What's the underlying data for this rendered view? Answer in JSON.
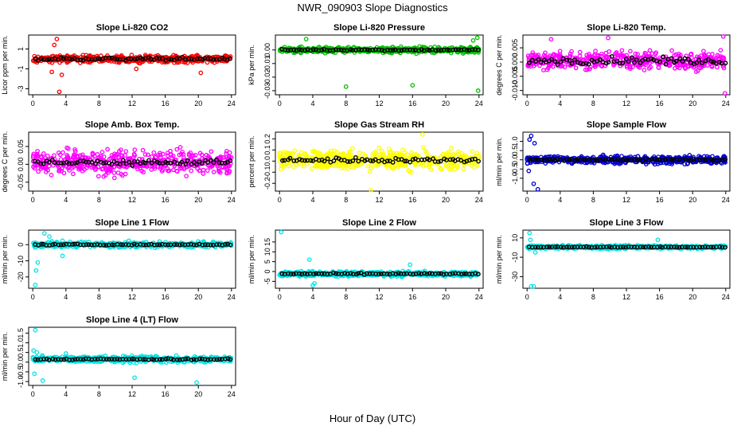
{
  "figure": {
    "title": "NWR_090903  Slope Diagnostics",
    "xlabel": "Hour of Day (UTC)"
  },
  "chart_data": [
    {
      "type": "scatter",
      "title": "Slope Li-820 CO2",
      "ylabel": "Licor ppm per min.",
      "xlim": [
        -0.5,
        24.5
      ],
      "ylim": [
        -3.6,
        2.4
      ],
      "xticks": [
        0,
        4,
        8,
        12,
        16,
        20,
        24
      ],
      "yticks": [
        -3,
        -1,
        1
      ],
      "ytick_labels": [
        "-3",
        "-1",
        "1"
      ],
      "color": "#ff0000",
      "spread": 0.5,
      "offset": 0,
      "noise_amp": 0.2,
      "jitter": 0.02,
      "outliers": [
        {
          "x": 2.3,
          "y": -1.3
        },
        {
          "x": 2.9,
          "y": 2.0
        },
        {
          "x": 3.2,
          "y": -3.3
        },
        {
          "x": 2.6,
          "y": 1.4
        },
        {
          "x": 12.5,
          "y": -1.0
        },
        {
          "x": 20.3,
          "y": -1.4
        },
        {
          "x": 3.5,
          "y": -1.6
        }
      ]
    },
    {
      "type": "scatter",
      "title": "Slope Li-820 Pressure",
      "ylabel": "kPa per min.",
      "xlim": [
        -0.5,
        24.5
      ],
      "ylim": [
        -0.033,
        0.011
      ],
      "xticks": [
        0,
        4,
        8,
        12,
        16,
        20,
        24
      ],
      "yticks": [
        0.0,
        -0.01,
        -0.02,
        -0.03
      ],
      "ytick_labels": [
        "0.00",
        "-0.01",
        "-0.02",
        "-0.03"
      ],
      "color": "#00c000",
      "spread": 0.003,
      "offset": 0,
      "noise_amp": 0.0008,
      "jitter": 0.0002,
      "outliers": [
        {
          "x": 3.2,
          "y": 0.008
        },
        {
          "x": 8.0,
          "y": -0.027
        },
        {
          "x": 16.0,
          "y": -0.026
        },
        {
          "x": 23.9,
          "y": -0.03
        },
        {
          "x": 23.8,
          "y": 0.009
        },
        {
          "x": 23.3,
          "y": 0.007
        }
      ]
    },
    {
      "type": "scatter",
      "title": "Slope Li-820 Temp.",
      "ylabel": "degrees C per min.",
      "xlim": [
        -0.5,
        24.5
      ],
      "ylim": [
        -0.0115,
        0.0095
      ],
      "xticks": [
        0,
        4,
        8,
        12,
        16,
        20,
        24
      ],
      "yticks": [
        0.005,
        0.0,
        -0.005,
        -0.01
      ],
      "ytick_labels": [
        "0.005",
        "0.000",
        "-0.005",
        "-0.010"
      ],
      "color": "#ff00ff",
      "spread": 0.0045,
      "offset": 0.0005,
      "noise_amp": 0.0018,
      "jitter": 0.0004,
      "outliers": [
        {
          "x": 23.7,
          "y": 0.009
        },
        {
          "x": 23.9,
          "y": -0.011
        },
        {
          "x": 2.9,
          "y": 0.008
        },
        {
          "x": 9.8,
          "y": 0.0085
        }
      ]
    },
    {
      "type": "scatter",
      "title": "Slope Amb. Box Temp.",
      "ylabel": "degrees C per min.",
      "xlim": [
        -0.5,
        24.5
      ],
      "ylim": [
        -0.075,
        0.09
      ],
      "xticks": [
        0,
        4,
        8,
        12,
        16,
        20,
        24
      ],
      "yticks": [
        0.05,
        0.0,
        -0.05
      ],
      "ytick_labels": [
        "0.05",
        "0.00",
        "-0.05"
      ],
      "color": "#ff00ff",
      "spread": 0.048,
      "offset": 0.005,
      "noise_amp": 0.012,
      "jitter": 0.003,
      "outliers": []
    },
    {
      "type": "scatter",
      "title": "Slope Gas Stream RH",
      "ylabel": "percent per min.",
      "xlim": [
        -0.5,
        24.5
      ],
      "ylim": [
        -0.27,
        0.26
      ],
      "xticks": [
        0,
        4,
        8,
        12,
        16,
        20,
        24
      ],
      "yticks": [
        0.2,
        0.1,
        0.0,
        -0.1,
        -0.2
      ],
      "ytick_labels": [
        "0.2",
        "0.1",
        "0.0",
        "-0.1",
        "-0.2"
      ],
      "color": "#ffff00",
      "spread": 0.13,
      "offset": 0.01,
      "noise_amp": 0.03,
      "jitter": 0.01,
      "outliers": [
        {
          "x": 11.0,
          "y": -0.26
        },
        {
          "x": 17.2,
          "y": 0.24
        }
      ]
    },
    {
      "type": "scatter",
      "title": "Slope Sample Flow",
      "ylabel": "ml/min per min.",
      "xlim": [
        -0.5,
        24.5
      ],
      "ylim": [
        -1.7,
        1.5
      ],
      "xticks": [
        0,
        4,
        8,
        12,
        16,
        20,
        24
      ],
      "yticks": [
        1.0,
        0.5,
        0.0,
        -0.5,
        -1.0
      ],
      "ytick_labels": [
        "1.0",
        "0.5",
        "0.0",
        "-0.5",
        "-1.0"
      ],
      "color": "#0000cc",
      "spread": 0.3,
      "offset": 0.0,
      "noise_amp": 0.08,
      "jitter": 0.02,
      "outliers": [
        {
          "x": 0.5,
          "y": 1.3
        },
        {
          "x": 0.3,
          "y": 1.1
        },
        {
          "x": 0.8,
          "y": -1.3
        },
        {
          "x": 1.3,
          "y": -1.6
        },
        {
          "x": 0.9,
          "y": 0.9
        },
        {
          "x": 0.2,
          "y": -0.6
        }
      ]
    },
    {
      "type": "scatter",
      "title": "Slope Line 1 Flow",
      "ylabel": "ml/min per min.",
      "xlim": [
        -0.5,
        24.5
      ],
      "ylim": [
        -27,
        9
      ],
      "xticks": [
        0,
        4,
        8,
        12,
        16,
        20,
        24
      ],
      "yticks": [
        0,
        -10,
        -20
      ],
      "ytick_labels": [
        "0",
        "-10",
        "-20"
      ],
      "color": "#00e5e5",
      "spread": 2.5,
      "offset": 0,
      "noise_amp": 0.5,
      "jitter": 0.2,
      "outliers": [
        {
          "x": 0.3,
          "y": -25
        },
        {
          "x": 0.4,
          "y": -16
        },
        {
          "x": 1.4,
          "y": 7
        },
        {
          "x": 2.0,
          "y": 5
        },
        {
          "x": 0.6,
          "y": -11
        },
        {
          "x": 3.6,
          "y": -7
        }
      ]
    },
    {
      "type": "scatter",
      "title": "Slope Line 2 Flow",
      "ylabel": "ml/min per min.",
      "xlim": [
        -0.5,
        24.5
      ],
      "ylim": [
        -8.5,
        21
      ],
      "xticks": [
        0,
        4,
        8,
        12,
        16,
        20,
        24
      ],
      "yticks": [
        -5,
        0,
        5,
        10,
        15
      ],
      "ytick_labels": [
        "-5",
        "0",
        "5",
        "10",
        "15"
      ],
      "color": "#00e5e5",
      "spread": 1.8,
      "offset": -1.2,
      "noise_amp": 0.5,
      "jitter": 0.2,
      "outliers": [
        {
          "x": 0.2,
          "y": 20
        },
        {
          "x": 3.6,
          "y": 6
        },
        {
          "x": 4.2,
          "y": -6
        },
        {
          "x": 4.0,
          "y": -7
        },
        {
          "x": 15.7,
          "y": 3.5
        }
      ]
    },
    {
      "type": "scatter",
      "title": "Slope Line 3 Flow",
      "ylabel": "ml/min per min.",
      "xlim": [
        -0.5,
        24.5
      ],
      "ylim": [
        -42,
        18
      ],
      "xticks": [
        0,
        4,
        8,
        12,
        16,
        20,
        24
      ],
      "yticks": [
        10,
        -10,
        -30
      ],
      "ytick_labels": [
        "10",
        "-10",
        "-30"
      ],
      "color": "#00e5e5",
      "spread": 2.5,
      "offset": 0.5,
      "noise_amp": 0.6,
      "jitter": 0.3,
      "outliers": [
        {
          "x": 0.3,
          "y": 15
        },
        {
          "x": 0.5,
          "y": -40
        },
        {
          "x": 0.8,
          "y": -40
        },
        {
          "x": 0.4,
          "y": 8
        },
        {
          "x": 1.0,
          "y": -5
        },
        {
          "x": 15.8,
          "y": 8
        }
      ]
    },
    {
      "type": "scatter",
      "title": "Slope Line 4 (LT) Flow",
      "ylabel": "ml/min per min.",
      "xlim": [
        -0.5,
        24.5
      ],
      "ylim": [
        -1.2,
        1.8
      ],
      "xticks": [
        0,
        4,
        8,
        12,
        16,
        20,
        24
      ],
      "yticks": [
        -1.0,
        -0.5,
        0.0,
        0.5,
        1.0,
        1.5
      ],
      "ytick_labels": [
        "-1.0",
        "-0.5",
        "0.0",
        "0.5",
        "1.0",
        "1.5"
      ],
      "color": "#00e5e5",
      "spread": 0.22,
      "offset": 0.15,
      "noise_amp": 0.05,
      "jitter": 0.02,
      "outliers": [
        {
          "x": 0.3,
          "y": 1.65
        },
        {
          "x": 0.1,
          "y": 0.6
        },
        {
          "x": 0.5,
          "y": 0.5
        },
        {
          "x": 0.2,
          "y": -0.6
        },
        {
          "x": 1.2,
          "y": -0.95
        },
        {
          "x": 12.3,
          "y": -0.8
        },
        {
          "x": 19.8,
          "y": -1.05
        },
        {
          "x": 4.0,
          "y": 0.45
        }
      ]
    }
  ]
}
